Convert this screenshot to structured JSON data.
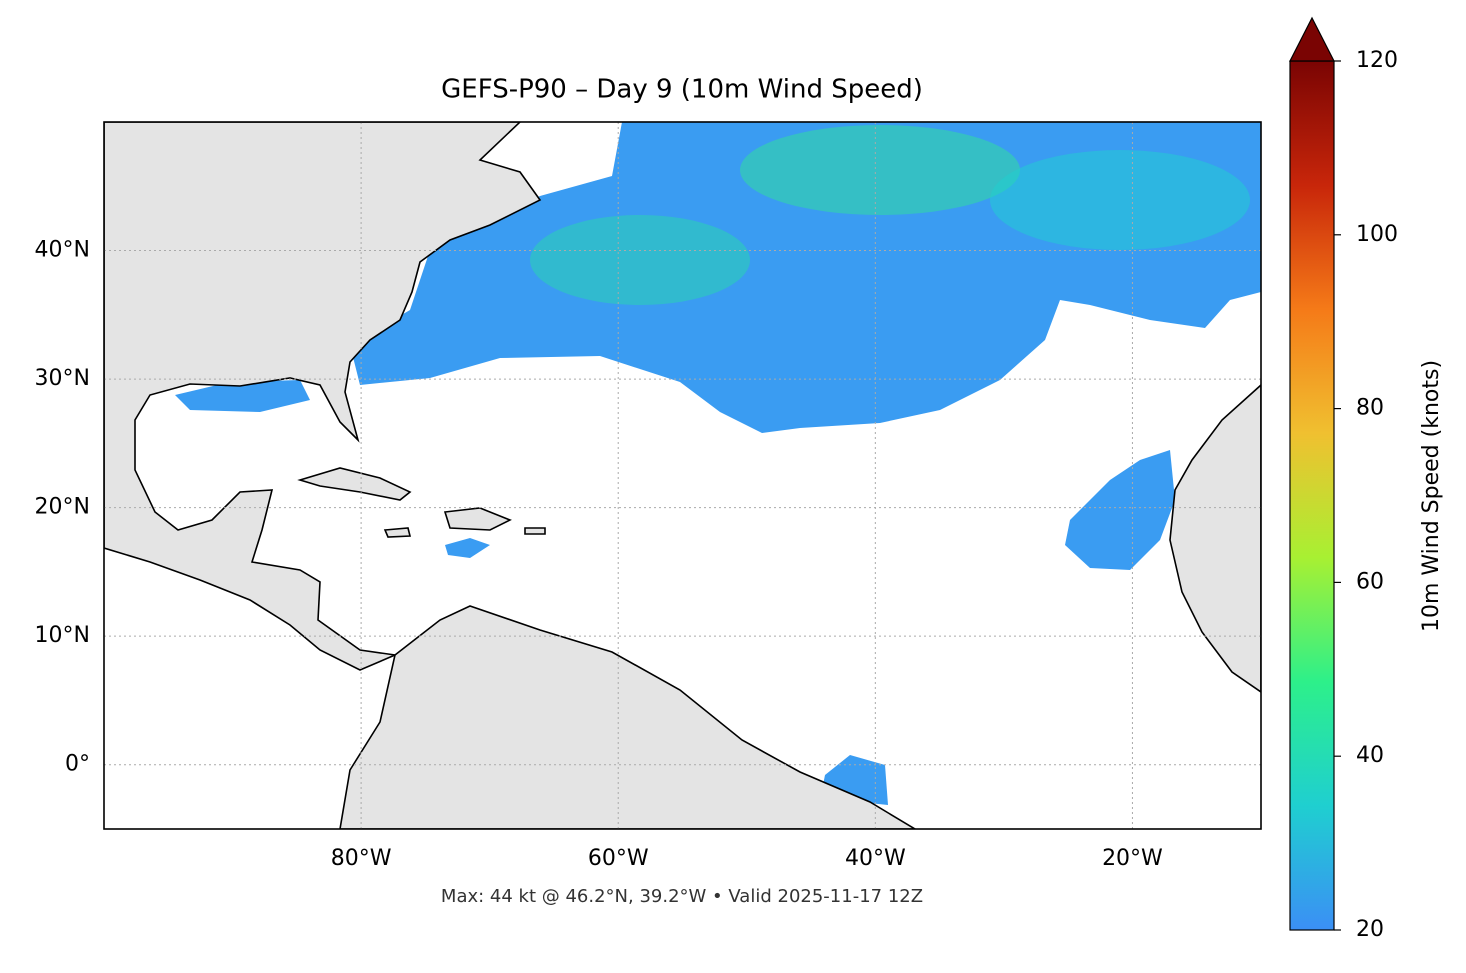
{
  "chart_data": {
    "type": "map",
    "title": "GEFS-P90 – Day 9 (10m Wind Speed)",
    "footnote": "Max: 44 kt @ 46.2°N, 39.2°W • Valid 2025-11-17 12Z",
    "xlim": [
      -100,
      -10
    ],
    "ylim": [
      -5,
      50
    ],
    "xticks": [
      {
        "value": -80,
        "label": "80°W"
      },
      {
        "value": -60,
        "label": "60°W"
      },
      {
        "value": -40,
        "label": "40°W"
      },
      {
        "value": -20,
        "label": "20°W"
      }
    ],
    "yticks": [
      {
        "value": 0,
        "label": "0°"
      },
      {
        "value": 10,
        "label": "10°N"
      },
      {
        "value": 20,
        "label": "20°N"
      },
      {
        "value": 30,
        "label": "30°N"
      },
      {
        "value": 40,
        "label": "40°N"
      }
    ],
    "grid": true,
    "colorbar": {
      "label": "10m Wind Speed (knots)",
      "lim": [
        20,
        120
      ],
      "ticks": [
        20,
        40,
        60,
        80,
        100,
        120
      ],
      "colors": [
        "#3b8ff5",
        "#1fcfd0",
        "#2df08a",
        "#a8f032",
        "#f0c030",
        "#f57a18",
        "#c8260a",
        "#7a0403"
      ]
    }
  }
}
